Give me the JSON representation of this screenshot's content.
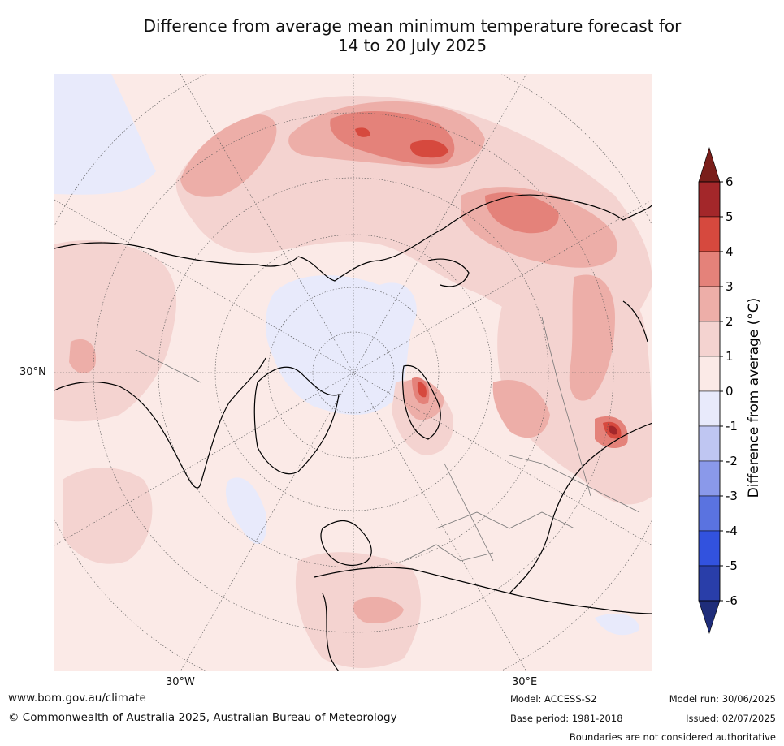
{
  "title_line1": "Difference from average mean minimum temperature forecast for",
  "title_line2": "14 to 20 July 2025",
  "lat_label": "30°N",
  "lon_labels": [
    "30°W",
    "30°E"
  ],
  "colorbar": {
    "label": "Difference from average (°C)",
    "ticks": [
      "6",
      "5",
      "4",
      "3",
      "2",
      "1",
      "0",
      "-1",
      "-2",
      "-3",
      "-4",
      "-5",
      "-6"
    ],
    "colors": [
      "#a3272a",
      "#d6493e",
      "#e4827a",
      "#edaea8",
      "#f4d3d0",
      "#fbeae7",
      "#e8eafb",
      "#bfc6f2",
      "#8a99ea",
      "#5a73e0",
      "#3252de",
      "#293ea9"
    ],
    "over_color": "#7a1e1a",
    "under_color": "#1f2d7a"
  },
  "footer": {
    "website": "www.bom.gov.au/climate",
    "copyright": "© Commonwealth of Australia 2025, Australian Bureau of Meteorology",
    "model": "Model: ACCESS-S2",
    "base_period": "Base period: 1981-2018",
    "model_run": "Model run: 30/06/2025",
    "issued": "Issued: 02/07/2025",
    "disclaimer": "Boundaries are not considered authoritative"
  }
}
